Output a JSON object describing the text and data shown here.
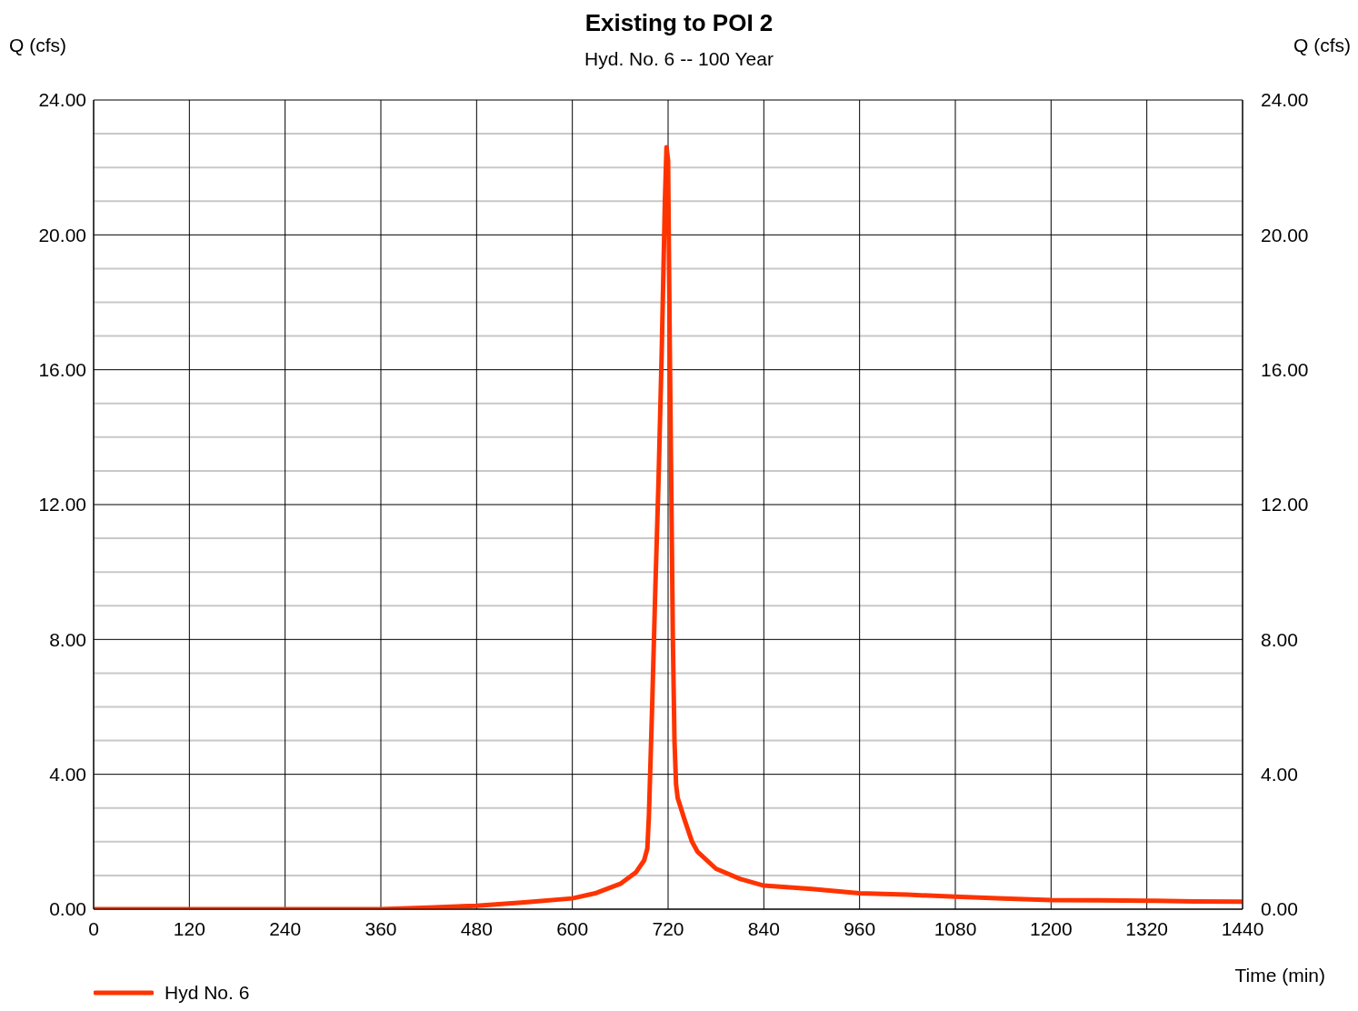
{
  "chart_data": {
    "type": "line",
    "title": "Existing to POI 2",
    "subtitle": "Hyd. No. 6 -- 100 Year",
    "xlabel": "Time (min)",
    "ylabel": "Q (cfs)",
    "y2label": "Q (cfs)",
    "x": [
      0,
      120,
      240,
      360,
      420,
      480,
      540,
      600,
      630,
      660,
      680,
      690,
      694,
      696,
      700,
      704,
      708,
      712,
      716,
      718,
      720,
      722,
      724,
      726,
      728,
      730,
      732,
      740,
      750,
      757,
      780,
      810,
      840,
      900,
      960,
      1020,
      1080,
      1140,
      1200,
      1260,
      1320,
      1380,
      1440
    ],
    "series": [
      {
        "name": "Hyd No. 6",
        "color": "#ff3300",
        "values": [
          0,
          0,
          0,
          0,
          0.05,
          0.1,
          0.2,
          0.32,
          0.48,
          0.75,
          1.1,
          1.45,
          1.8,
          2.8,
          6.0,
          9.5,
          12.7,
          16.5,
          21.0,
          22.6,
          22.2,
          17.0,
          12.5,
          8.0,
          5.0,
          3.7,
          3.3,
          2.7,
          2.0,
          1.7,
          1.2,
          0.9,
          0.7,
          0.6,
          0.47,
          0.43,
          0.37,
          0.32,
          0.27,
          0.26,
          0.25,
          0.23,
          0.22
        ]
      }
    ],
    "xlim": [
      0,
      1440
    ],
    "xticks": [
      0,
      120,
      240,
      360,
      480,
      600,
      720,
      840,
      960,
      1080,
      1200,
      1320,
      1440
    ],
    "ylim": [
      0,
      24
    ],
    "yticks": [
      {
        "value": 0,
        "label": "0.00"
      },
      {
        "value": 1,
        "label": null
      },
      {
        "value": 2,
        "label": null
      },
      {
        "value": 3,
        "label": null
      },
      {
        "value": 4,
        "label": "4.00"
      },
      {
        "value": 5,
        "label": null
      },
      {
        "value": 6,
        "label": null
      },
      {
        "value": 7,
        "label": null
      },
      {
        "value": 8,
        "label": "8.00"
      },
      {
        "value": 9,
        "label": null
      },
      {
        "value": 10,
        "label": null
      },
      {
        "value": 11,
        "label": null
      },
      {
        "value": 12,
        "label": "12.00"
      },
      {
        "value": 13,
        "label": null
      },
      {
        "value": 14,
        "label": null
      },
      {
        "value": 15,
        "label": null
      },
      {
        "value": 16,
        "label": "16.00"
      },
      {
        "value": 17,
        "label": null
      },
      {
        "value": 18,
        "label": null
      },
      {
        "value": 19,
        "label": null
      },
      {
        "value": 20,
        "label": "20.00"
      },
      {
        "value": 21,
        "label": null
      },
      {
        "value": 22,
        "label": null
      },
      {
        "value": 23,
        "label": null
      },
      {
        "value": 24,
        "label": "24.00"
      }
    ],
    "y2lim": [
      0,
      24
    ],
    "y2ticks": [
      {
        "value": 0,
        "label": "0.00"
      },
      {
        "value": 4,
        "label": "4.00"
      },
      {
        "value": 8,
        "label": "8.00"
      },
      {
        "value": 12,
        "label": "12.00"
      },
      {
        "value": 16,
        "label": "16.00"
      },
      {
        "value": 20,
        "label": "20.00"
      },
      {
        "value": 24,
        "label": "24.00"
      }
    ],
    "grid": true,
    "legend": "bottom left",
    "marker": "none",
    "line_style": "solid"
  }
}
